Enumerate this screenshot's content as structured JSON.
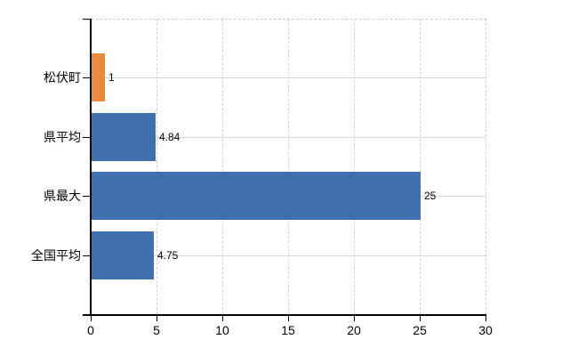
{
  "chart_data": {
    "type": "bar",
    "orientation": "horizontal",
    "title": "",
    "categories": [
      "松伏町",
      "県平均",
      "県最大",
      "全国平均"
    ],
    "values": [
      1,
      4.84,
      25,
      4.75
    ],
    "value_labels": [
      "1",
      "4.84",
      "25",
      "4.75"
    ],
    "bar_colors": [
      "#e98b3c",
      "#3e6fae",
      "#3e6fae",
      "#3e6fae"
    ],
    "x_ticks": [
      "0",
      "5",
      "10",
      "15",
      "20",
      "25",
      "30"
    ],
    "xlim": [
      0,
      30
    ],
    "grid": true,
    "legend": false,
    "colors": {
      "bar_blue": "#3e6fae",
      "bar_orange": "#e98b3c",
      "axis": "#000000",
      "grid_horizontal": "#d6ddd0",
      "grid_vertical": "#d4d1d4",
      "plot_border_dashed": "#cfcccf",
      "text": "#000000",
      "background": "#ffffff"
    }
  }
}
